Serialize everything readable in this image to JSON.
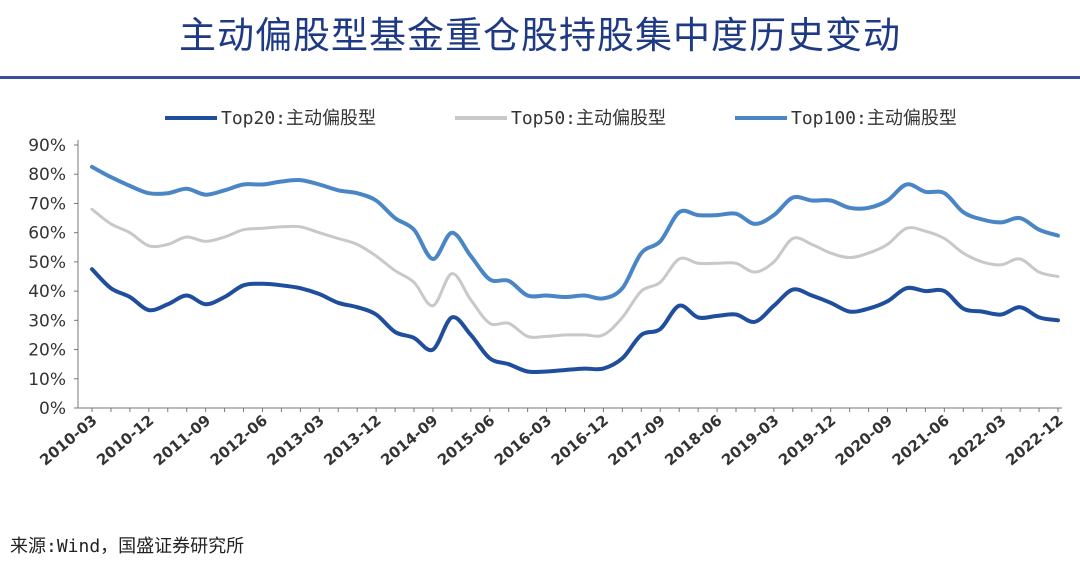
{
  "title": "主动偏股型基金重仓股持股集中度历史变动",
  "source": "来源:Wind，国盛证券研究所",
  "chart_data": {
    "type": "line",
    "yticks": [
      "0%",
      "10%",
      "20%",
      "30%",
      "40%",
      "50%",
      "60%",
      "70%",
      "80%",
      "90%"
    ],
    "ylim": [
      0,
      90
    ],
    "xticks": [
      "2010-03",
      "2010-12",
      "2011-09",
      "2012-06",
      "2013-03",
      "2013-12",
      "2014-09",
      "2015-06",
      "2016-03",
      "2016-12",
      "2017-09",
      "2018-06",
      "2019-03",
      "2019-12",
      "2020-09",
      "2021-06",
      "2022-03",
      "2022-12"
    ],
    "legend_position": "top",
    "series": [
      {
        "name": "Top20:主动偏股型",
        "color": "#1f4e9c",
        "values": [
          47.5,
          41,
          38,
          33.5,
          35.5,
          38.5,
          35.5,
          38,
          42,
          42.5,
          42,
          41,
          39,
          36,
          34.5,
          32,
          26,
          24,
          20,
          31,
          25,
          17,
          15,
          12.5,
          12.5,
          13,
          13.5,
          13.5,
          17,
          25,
          27,
          35,
          31,
          31.5,
          32,
          29.5,
          35,
          40.5,
          38.5,
          36,
          33,
          34,
          36.5,
          41,
          40,
          40,
          34,
          33,
          32,
          34.5,
          31,
          30
        ]
      },
      {
        "name": "Top50:主动偏股型",
        "color": "#c8c8c8",
        "values": [
          68,
          63,
          60,
          55.5,
          56,
          58.5,
          57,
          58.5,
          61,
          61.5,
          62,
          62,
          60,
          58,
          56,
          52,
          47,
          43,
          35,
          46,
          37,
          29,
          29,
          24.5,
          24.5,
          25,
          25,
          25,
          31,
          40,
          43,
          51,
          49.5,
          49.5,
          49.5,
          46.5,
          50,
          58,
          56,
          53,
          51.5,
          53,
          56,
          61.5,
          60.5,
          58,
          53,
          50,
          49,
          51,
          46.5,
          45
        ]
      },
      {
        "name": "Top100:主动偏股型",
        "color": "#4a86c5",
        "values": [
          82.5,
          79,
          76,
          73.5,
          73.5,
          75,
          73,
          74.5,
          76.5,
          76.5,
          77.5,
          78,
          76.5,
          74.5,
          73.5,
          71,
          65,
          61,
          51,
          60,
          52,
          44,
          43.5,
          38.5,
          38.5,
          38,
          38.5,
          37.5,
          41,
          53,
          57,
          67,
          66,
          66,
          66.5,
          63,
          66,
          72,
          71,
          71,
          68.5,
          68.5,
          71,
          76.5,
          74,
          73.5,
          67,
          64.5,
          63.5,
          65,
          61,
          59
        ]
      }
    ]
  }
}
